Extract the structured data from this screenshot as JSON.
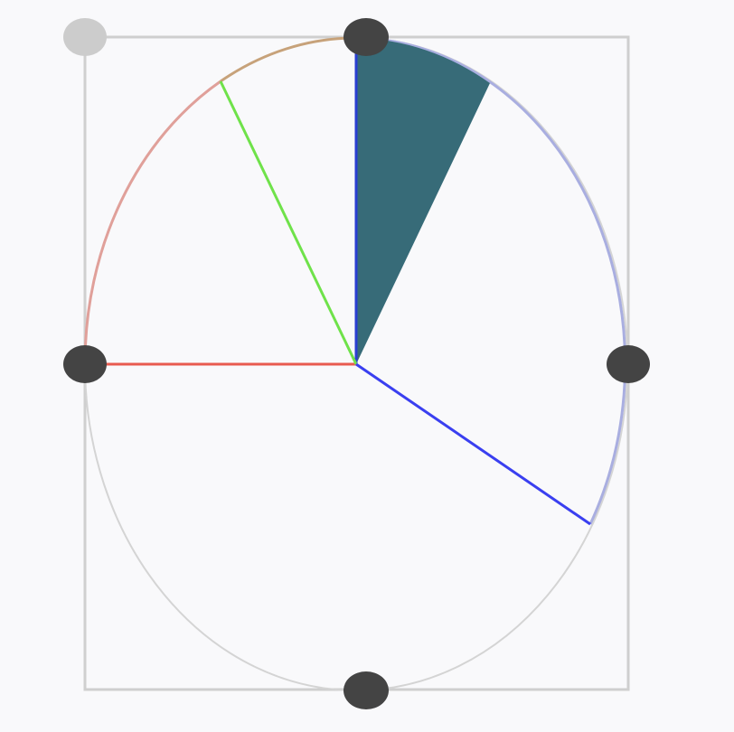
{
  "editor": {
    "colors": {
      "background": "#f9f9fb",
      "bounding_box": "#cfcfcf",
      "ellipse_outline": "#d4d4d4",
      "arc_left": "#e0a09a",
      "arc_top": "#c7a27a",
      "arc_right": "#a9aee0",
      "handle": "#444444",
      "handle_corner": "#cccccc",
      "wedge_fill": "#376b78",
      "wedge_edge": "#2a3fd1",
      "radius_red": "#e85a4f",
      "radius_green": "#6fe24a",
      "radius_blue": "#3a3ff0"
    },
    "handles": [
      {
        "name": "resize-handle-top-left-corner",
        "icon": "circle-handle",
        "active": false
      },
      {
        "name": "resize-handle-top",
        "icon": "oval-handle",
        "active": true
      },
      {
        "name": "resize-handle-right",
        "icon": "oval-handle",
        "active": true
      },
      {
        "name": "resize-handle-bottom",
        "icon": "oval-handle",
        "active": true
      },
      {
        "name": "resize-handle-left",
        "icon": "oval-handle",
        "active": true
      }
    ]
  }
}
